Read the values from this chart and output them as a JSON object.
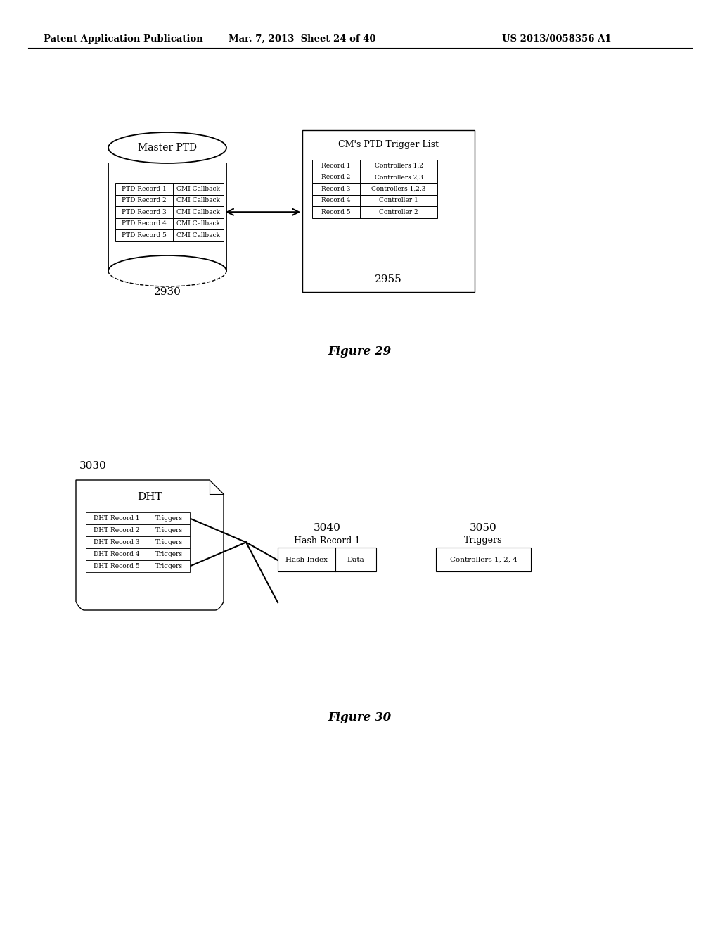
{
  "bg_color": "#ffffff",
  "header_left": "Patent Application Publication",
  "header_center": "Mar. 7, 2013  Sheet 24 of 40",
  "header_right": "US 2013/0058356 A1",
  "fig29_caption": "Figure 29",
  "fig30_caption": "Figure 30",
  "fig29": {
    "master_ptd_title": "Master PTD",
    "master_ptd_label": "2930",
    "master_ptd_rows": [
      [
        "PTD Record 1",
        "CMI Callback"
      ],
      [
        "PTD Record 2",
        "CMI Callback"
      ],
      [
        "PTD Record 3",
        "CMI Callback"
      ],
      [
        "PTD Record 4",
        "CMI Callback"
      ],
      [
        "PTD Record 5",
        "CMI Callback"
      ]
    ],
    "trigger_list_title": "CM's PTD Trigger List",
    "trigger_list_label": "2955",
    "trigger_list_rows": [
      [
        "Record 1",
        "Controllers 1,2"
      ],
      [
        "Record 2",
        "Controllers 2,3"
      ],
      [
        "Record 3",
        "Controllers 1,2,3"
      ],
      [
        "Record 4",
        "Controller 1"
      ],
      [
        "Record 5",
        "Controller 2"
      ]
    ]
  },
  "fig30": {
    "dht_title": "DHT",
    "dht_label": "3030",
    "dht_rows": [
      [
        "DHT Record 1",
        "Triggers"
      ],
      [
        "DHT Record 2",
        "Triggers"
      ],
      [
        "DHT Record 3",
        "Triggers"
      ],
      [
        "DHT Record 4",
        "Triggers"
      ],
      [
        "DHT Record 5",
        "Triggers"
      ]
    ],
    "hash_record_label": "3040",
    "hash_record_title": "Hash Record 1",
    "hash_record_cols": [
      "Hash Index",
      "Data"
    ],
    "triggers_label": "3050",
    "triggers_title": "Triggers",
    "triggers_content": "Controllers 1, 2, 4"
  }
}
